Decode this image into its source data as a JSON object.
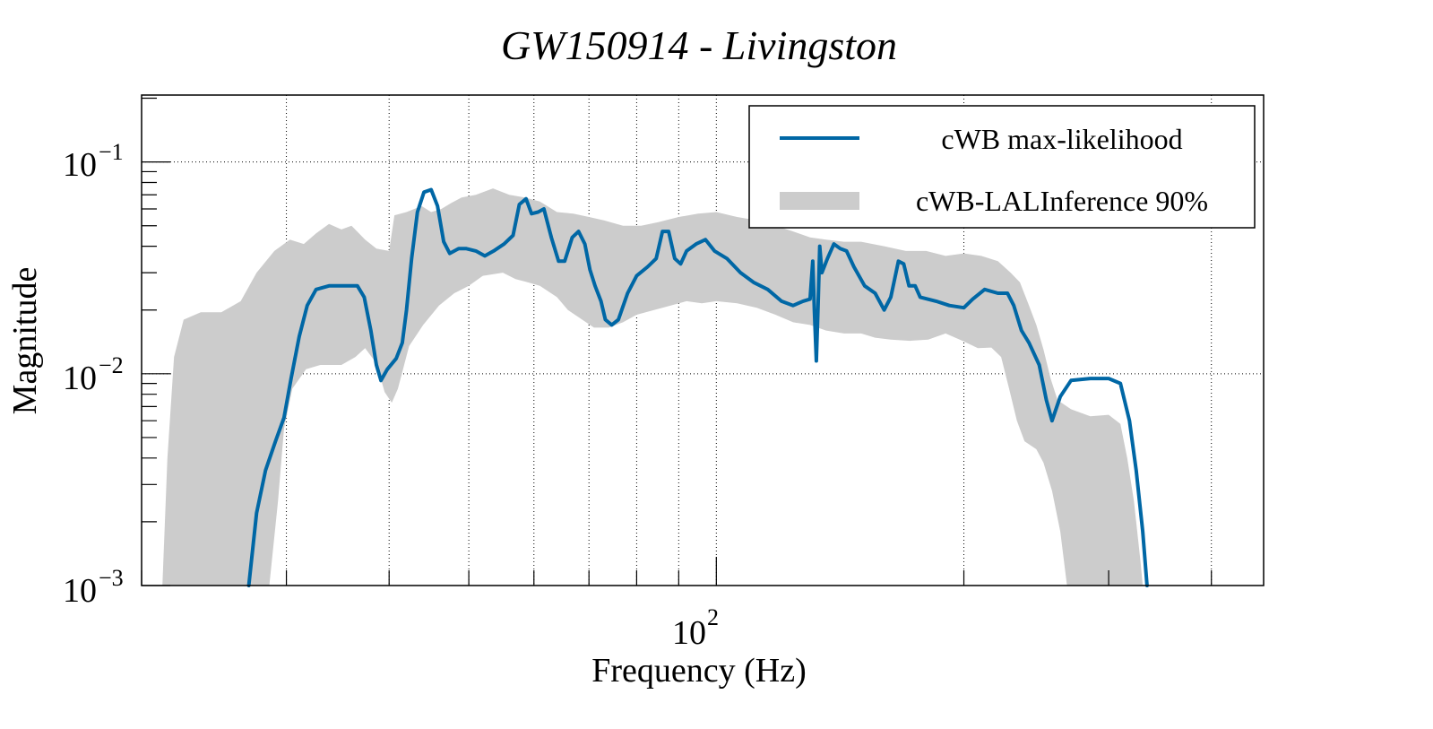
{
  "chart_data": {
    "type": "line",
    "title": "GW150914 - Livingston",
    "xlabel": "Frequency (Hz)",
    "ylabel": "Magnitude",
    "xscale": "log",
    "yscale": "log",
    "xlim": [
      20,
      463
    ],
    "ylim": [
      0.001,
      0.207
    ],
    "grid": true,
    "legend_position": "top-right",
    "x_ticks": [
      {
        "value": 100,
        "label_base": "10",
        "label_exp": "2"
      }
    ],
    "y_ticks": [
      {
        "value": 0.1,
        "label_base": "10",
        "label_exp": "−1"
      },
      {
        "value": 0.01,
        "label_base": "10",
        "label_exp": "−2"
      },
      {
        "value": 0.001,
        "label_base": "10",
        "label_exp": "−3"
      }
    ],
    "x_gridlines": [
      20,
      30,
      40,
      50,
      60,
      70,
      80,
      90,
      100,
      200,
      400
    ],
    "y_gridlines": [
      0.1,
      0.01
    ],
    "series": [
      {
        "name": "cWB max-likelihood",
        "kind": "line",
        "color": "#0067a5",
        "points": [
          [
            27.0,
            0.001
          ],
          [
            27.6,
            0.0022
          ],
          [
            28.3,
            0.0035
          ],
          [
            29.1,
            0.0048
          ],
          [
            29.8,
            0.0062
          ],
          [
            30.4,
            0.0095
          ],
          [
            31.1,
            0.015
          ],
          [
            31.8,
            0.021
          ],
          [
            32.6,
            0.025
          ],
          [
            33.8,
            0.026
          ],
          [
            35.5,
            0.026
          ],
          [
            36.6,
            0.026
          ],
          [
            37.3,
            0.023
          ],
          [
            38.0,
            0.016
          ],
          [
            38.6,
            0.011
          ],
          [
            39.1,
            0.0093
          ],
          [
            39.8,
            0.0105
          ],
          [
            40.8,
            0.0118
          ],
          [
            41.5,
            0.014
          ],
          [
            42.0,
            0.02
          ],
          [
            42.6,
            0.035
          ],
          [
            43.3,
            0.058
          ],
          [
            44.1,
            0.072
          ],
          [
            45.0,
            0.074
          ],
          [
            45.8,
            0.062
          ],
          [
            46.6,
            0.042
          ],
          [
            47.4,
            0.037
          ],
          [
            48.6,
            0.039
          ],
          [
            49.6,
            0.039
          ],
          [
            51.0,
            0.038
          ],
          [
            52.3,
            0.036
          ],
          [
            53.6,
            0.038
          ],
          [
            55.2,
            0.041
          ],
          [
            56.6,
            0.045
          ],
          [
            57.6,
            0.063
          ],
          [
            58.7,
            0.067
          ],
          [
            59.6,
            0.057
          ],
          [
            60.7,
            0.058
          ],
          [
            61.7,
            0.06
          ],
          [
            63.0,
            0.044
          ],
          [
            64.3,
            0.034
          ],
          [
            65.4,
            0.034
          ],
          [
            66.8,
            0.044
          ],
          [
            68.0,
            0.047
          ],
          [
            69.2,
            0.041
          ],
          [
            70.2,
            0.031
          ],
          [
            71.2,
            0.026
          ],
          [
            72.4,
            0.022
          ],
          [
            73.3,
            0.018
          ],
          [
            74.6,
            0.017
          ],
          [
            76.0,
            0.018
          ],
          [
            78.0,
            0.024
          ],
          [
            80.0,
            0.029
          ],
          [
            82.5,
            0.032
          ],
          [
            84.5,
            0.035
          ],
          [
            86.0,
            0.047
          ],
          [
            87.5,
            0.047
          ],
          [
            89.0,
            0.035
          ],
          [
            90.5,
            0.033
          ],
          [
            92.0,
            0.038
          ],
          [
            94.5,
            0.041
          ],
          [
            97.0,
            0.043
          ],
          [
            99.5,
            0.038
          ],
          [
            103.0,
            0.035
          ],
          [
            107.0,
            0.03
          ],
          [
            111.0,
            0.027
          ],
          [
            115.5,
            0.025
          ],
          [
            120.0,
            0.022
          ],
          [
            124.0,
            0.021
          ],
          [
            127.5,
            0.022
          ],
          [
            130.0,
            0.0225
          ],
          [
            131.0,
            0.034
          ],
          [
            131.6,
            0.02
          ],
          [
            132.3,
            0.0115
          ],
          [
            133.0,
            0.022
          ],
          [
            133.6,
            0.04
          ],
          [
            134.4,
            0.03
          ],
          [
            136.5,
            0.035
          ],
          [
            139.0,
            0.041
          ],
          [
            141.5,
            0.039
          ],
          [
            144.0,
            0.038
          ],
          [
            147.0,
            0.032
          ],
          [
            151.5,
            0.026
          ],
          [
            156.0,
            0.024
          ],
          [
            160.0,
            0.02
          ],
          [
            163.0,
            0.023
          ],
          [
            166.5,
            0.034
          ],
          [
            169.0,
            0.033
          ],
          [
            171.5,
            0.026
          ],
          [
            174.5,
            0.026
          ],
          [
            177.0,
            0.023
          ],
          [
            185.0,
            0.022
          ],
          [
            192.0,
            0.021
          ],
          [
            200.0,
            0.0205
          ],
          [
            205.0,
            0.0225
          ],
          [
            212.0,
            0.025
          ],
          [
            220.0,
            0.024
          ],
          [
            226.0,
            0.024
          ],
          [
            230.0,
            0.021
          ],
          [
            235.0,
            0.016
          ],
          [
            240.0,
            0.014
          ],
          [
            247.0,
            0.011
          ],
          [
            252.0,
            0.0075
          ],
          [
            256.0,
            0.006
          ],
          [
            262.0,
            0.0078
          ],
          [
            270.0,
            0.0093
          ],
          [
            285.0,
            0.0095
          ],
          [
            300.0,
            0.0095
          ],
          [
            310.0,
            0.009
          ],
          [
            318.0,
            0.006
          ],
          [
            324.0,
            0.0035
          ],
          [
            330.0,
            0.0018
          ],
          [
            334.0,
            0.001
          ]
        ]
      },
      {
        "name": "cWB-LALInference 90%",
        "kind": "band",
        "color": "#cccccc",
        "upper": [
          [
            21.2,
            0.001
          ],
          [
            21.5,
            0.004
          ],
          [
            21.9,
            0.012
          ],
          [
            22.5,
            0.018
          ],
          [
            23.6,
            0.0195
          ],
          [
            25.0,
            0.0195
          ],
          [
            26.4,
            0.022
          ],
          [
            27.6,
            0.03
          ],
          [
            29.0,
            0.038
          ],
          [
            30.3,
            0.043
          ],
          [
            31.5,
            0.041
          ],
          [
            32.6,
            0.046
          ],
          [
            33.8,
            0.051
          ],
          [
            35.0,
            0.048
          ],
          [
            36.0,
            0.05
          ],
          [
            37.4,
            0.043
          ],
          [
            38.6,
            0.039
          ],
          [
            40.0,
            0.038
          ],
          [
            40.6,
            0.056
          ],
          [
            42.0,
            0.058
          ],
          [
            43.8,
            0.062
          ],
          [
            45.0,
            0.058
          ],
          [
            46.3,
            0.06
          ],
          [
            47.6,
            0.064
          ],
          [
            49.0,
            0.068
          ],
          [
            51.0,
            0.07
          ],
          [
            53.5,
            0.075
          ],
          [
            56.0,
            0.07
          ],
          [
            58.5,
            0.068
          ],
          [
            61.0,
            0.065
          ],
          [
            64.0,
            0.058
          ],
          [
            67.0,
            0.057
          ],
          [
            70.0,
            0.055
          ],
          [
            73.0,
            0.053
          ],
          [
            77.0,
            0.05
          ],
          [
            81.0,
            0.05
          ],
          [
            85.0,
            0.052
          ],
          [
            90.0,
            0.055
          ],
          [
            95.0,
            0.057
          ],
          [
            100.0,
            0.058
          ],
          [
            106.0,
            0.055
          ],
          [
            112.0,
            0.053
          ],
          [
            118.0,
            0.05
          ],
          [
            124.0,
            0.047
          ],
          [
            130.0,
            0.044
          ],
          [
            136.0,
            0.043
          ],
          [
            143.0,
            0.042
          ],
          [
            150.0,
            0.042
          ],
          [
            160.0,
            0.04
          ],
          [
            170.0,
            0.038
          ],
          [
            180.0,
            0.038
          ],
          [
            190.0,
            0.036
          ],
          [
            200.0,
            0.037
          ],
          [
            210.0,
            0.036
          ],
          [
            220.0,
            0.034
          ],
          [
            228.0,
            0.03
          ],
          [
            234.0,
            0.027
          ],
          [
            240.0,
            0.021
          ],
          [
            245.0,
            0.017
          ],
          [
            250.0,
            0.013
          ],
          [
            255.0,
            0.0095
          ],
          [
            260.0,
            0.0075
          ],
          [
            270.0,
            0.0068
          ],
          [
            285.0,
            0.0063
          ],
          [
            300.0,
            0.0064
          ],
          [
            310.0,
            0.0058
          ],
          [
            316.0,
            0.004
          ],
          [
            322.0,
            0.0025
          ],
          [
            328.0,
            0.0013
          ],
          [
            330.0,
            0.001
          ]
        ],
        "lower": [
          [
            21.2,
            0.001
          ],
          [
            23.0,
            0.001
          ],
          [
            25.0,
            0.001
          ],
          [
            27.0,
            0.001
          ],
          [
            28.6,
            0.001
          ],
          [
            29.3,
            0.0025
          ],
          [
            29.8,
            0.0055
          ],
          [
            30.5,
            0.0085
          ],
          [
            31.7,
            0.0105
          ],
          [
            33.0,
            0.011
          ],
          [
            35.0,
            0.011
          ],
          [
            36.4,
            0.012
          ],
          [
            37.4,
            0.0132
          ],
          [
            38.6,
            0.0112
          ],
          [
            39.5,
            0.0082
          ],
          [
            40.3,
            0.0073
          ],
          [
            41.0,
            0.0085
          ],
          [
            42.3,
            0.0135
          ],
          [
            44.0,
            0.017
          ],
          [
            46.0,
            0.021
          ],
          [
            48.0,
            0.024
          ],
          [
            50.0,
            0.026
          ],
          [
            52.0,
            0.029
          ],
          [
            55.0,
            0.03
          ],
          [
            57.0,
            0.028
          ],
          [
            59.0,
            0.027
          ],
          [
            61.0,
            0.026
          ],
          [
            64.0,
            0.023
          ],
          [
            66.0,
            0.02
          ],
          [
            68.0,
            0.0185
          ],
          [
            71.0,
            0.0165
          ],
          [
            74.0,
            0.0165
          ],
          [
            77.0,
            0.0175
          ],
          [
            80.0,
            0.019
          ],
          [
            84.0,
            0.02
          ],
          [
            88.0,
            0.021
          ],
          [
            92.0,
            0.022
          ],
          [
            96.0,
            0.0215
          ],
          [
            100.0,
            0.022
          ],
          [
            106.0,
            0.0215
          ],
          [
            112.0,
            0.0205
          ],
          [
            118.0,
            0.019
          ],
          [
            124.0,
            0.0175
          ],
          [
            130.0,
            0.017
          ],
          [
            136.0,
            0.016
          ],
          [
            143.0,
            0.0155
          ],
          [
            150.0,
            0.0155
          ],
          [
            156.0,
            0.0148
          ],
          [
            163.0,
            0.0145
          ],
          [
            172.0,
            0.0143
          ],
          [
            181.0,
            0.0145
          ],
          [
            190.0,
            0.0155
          ],
          [
            200.0,
            0.0142
          ],
          [
            208.0,
            0.0132
          ],
          [
            216.0,
            0.0133
          ],
          [
            222.0,
            0.012
          ],
          [
            227.0,
            0.0085
          ],
          [
            232.0,
            0.006
          ],
          [
            237.0,
            0.0048
          ],
          [
            245.0,
            0.0044
          ],
          [
            250.0,
            0.0038
          ],
          [
            256.0,
            0.0028
          ],
          [
            262.0,
            0.0018
          ],
          [
            267.0,
            0.001
          ]
        ]
      }
    ]
  },
  "legend": {
    "items": [
      {
        "label": "cWB max-likelihood",
        "kind": "line"
      },
      {
        "label": "cWB-LALInference 90%",
        "kind": "band"
      }
    ]
  }
}
